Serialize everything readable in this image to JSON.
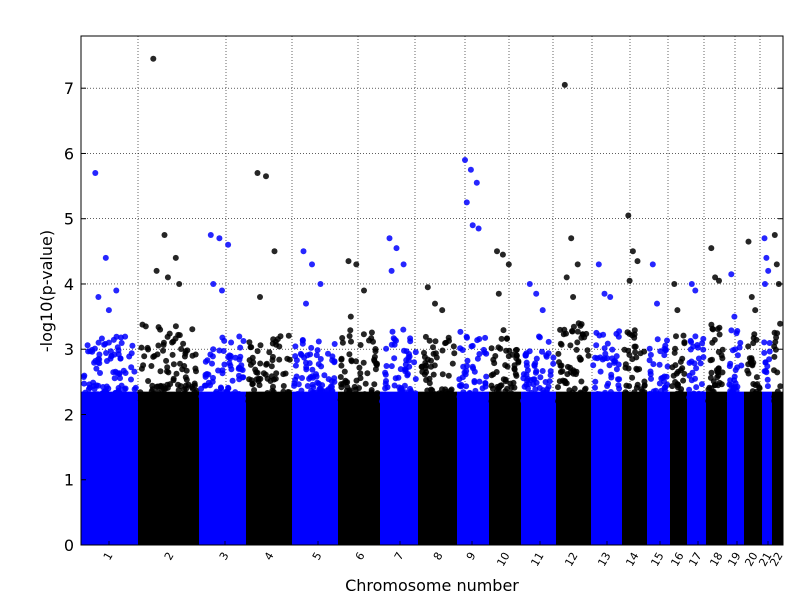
{
  "chart_data": {
    "type": "scatter",
    "title": "",
    "xlabel": "Chromosome number",
    "ylabel": "-log10(p-value)",
    "ylim": [
      0,
      7.8
    ],
    "y_ticks": [
      0,
      1,
      2,
      3,
      4,
      5,
      6,
      7
    ],
    "x_tick_labels": [
      "1",
      "2",
      "3",
      "4",
      "5",
      "6",
      "7",
      "8",
      "9",
      "10",
      "11",
      "12",
      "13",
      "14",
      "15",
      "16",
      "17",
      "18",
      "19",
      "20",
      "21",
      "22"
    ],
    "x_tick_label_rotation_deg": 60,
    "grid": "dotted",
    "colors": {
      "odd_chromosomes": "#0000ff",
      "even_chromosomes": "#000000"
    },
    "chromosomes": [
      {
        "name": "1",
        "color": "#0000ff",
        "typical_max": 3.2,
        "peaks": [
          5.7,
          4.4,
          3.9,
          3.8,
          3.6
        ]
      },
      {
        "name": "2",
        "color": "#000000",
        "typical_max": 3.4,
        "peaks": [
          7.45,
          4.75,
          4.4,
          4.2,
          4.1,
          4.0
        ]
      },
      {
        "name": "3",
        "color": "#0000ff",
        "typical_max": 3.2,
        "peaks": [
          4.75,
          4.7,
          4.6,
          4.0,
          3.9
        ]
      },
      {
        "name": "4",
        "color": "#000000",
        "typical_max": 3.3,
        "peaks": [
          5.7,
          5.65,
          4.5,
          3.8
        ]
      },
      {
        "name": "5",
        "color": "#0000ff",
        "typical_max": 3.2,
        "peaks": [
          4.5,
          4.3,
          4.0,
          3.7
        ]
      },
      {
        "name": "6",
        "color": "#000000",
        "typical_max": 3.3,
        "peaks": [
          4.35,
          4.3,
          3.9,
          3.5
        ]
      },
      {
        "name": "7",
        "color": "#0000ff",
        "typical_max": 3.4,
        "peaks": [
          4.7,
          4.55,
          4.3,
          4.2
        ]
      },
      {
        "name": "8",
        "color": "#000000",
        "typical_max": 3.2,
        "peaks": [
          3.95,
          3.7,
          3.6
        ]
      },
      {
        "name": "9",
        "color": "#0000ff",
        "typical_max": 3.3,
        "peaks": [
          5.9,
          5.75,
          5.55,
          5.25,
          4.9,
          4.85
        ]
      },
      {
        "name": "10",
        "color": "#000000",
        "typical_max": 3.3,
        "peaks": [
          4.5,
          4.45,
          4.3,
          3.85
        ]
      },
      {
        "name": "11",
        "color": "#0000ff",
        "typical_max": 3.2,
        "peaks": [
          4.0,
          3.85,
          3.6
        ]
      },
      {
        "name": "12",
        "color": "#000000",
        "typical_max": 3.4,
        "peaks": [
          7.05,
          4.7,
          4.3,
          4.1,
          3.8
        ]
      },
      {
        "name": "13",
        "color": "#0000ff",
        "typical_max": 3.3,
        "peaks": [
          4.3,
          3.85,
          3.8
        ]
      },
      {
        "name": "14",
        "color": "#000000",
        "typical_max": 3.3,
        "peaks": [
          5.05,
          4.5,
          4.35,
          4.05
        ]
      },
      {
        "name": "15",
        "color": "#0000ff",
        "typical_max": 3.2,
        "peaks": [
          4.3,
          3.7
        ]
      },
      {
        "name": "16",
        "color": "#000000",
        "typical_max": 3.3,
        "peaks": [
          4.0,
          3.6
        ]
      },
      {
        "name": "17",
        "color": "#0000ff",
        "typical_max": 3.3,
        "peaks": [
          4.0,
          3.9
        ]
      },
      {
        "name": "18",
        "color": "#000000",
        "typical_max": 3.4,
        "peaks": [
          4.55,
          4.1,
          4.05
        ]
      },
      {
        "name": "19",
        "color": "#0000ff",
        "typical_max": 3.3,
        "peaks": [
          4.15,
          3.5
        ]
      },
      {
        "name": "20",
        "color": "#000000",
        "typical_max": 3.3,
        "peaks": [
          4.65,
          3.8,
          3.6
        ]
      },
      {
        "name": "21",
        "color": "#0000ff",
        "typical_max": 3.3,
        "peaks": [
          4.7,
          4.4,
          4.2,
          4.0
        ]
      },
      {
        "name": "22",
        "color": "#000000",
        "typical_max": 3.4,
        "peaks": [
          4.75,
          4.3,
          4.0
        ]
      }
    ]
  }
}
